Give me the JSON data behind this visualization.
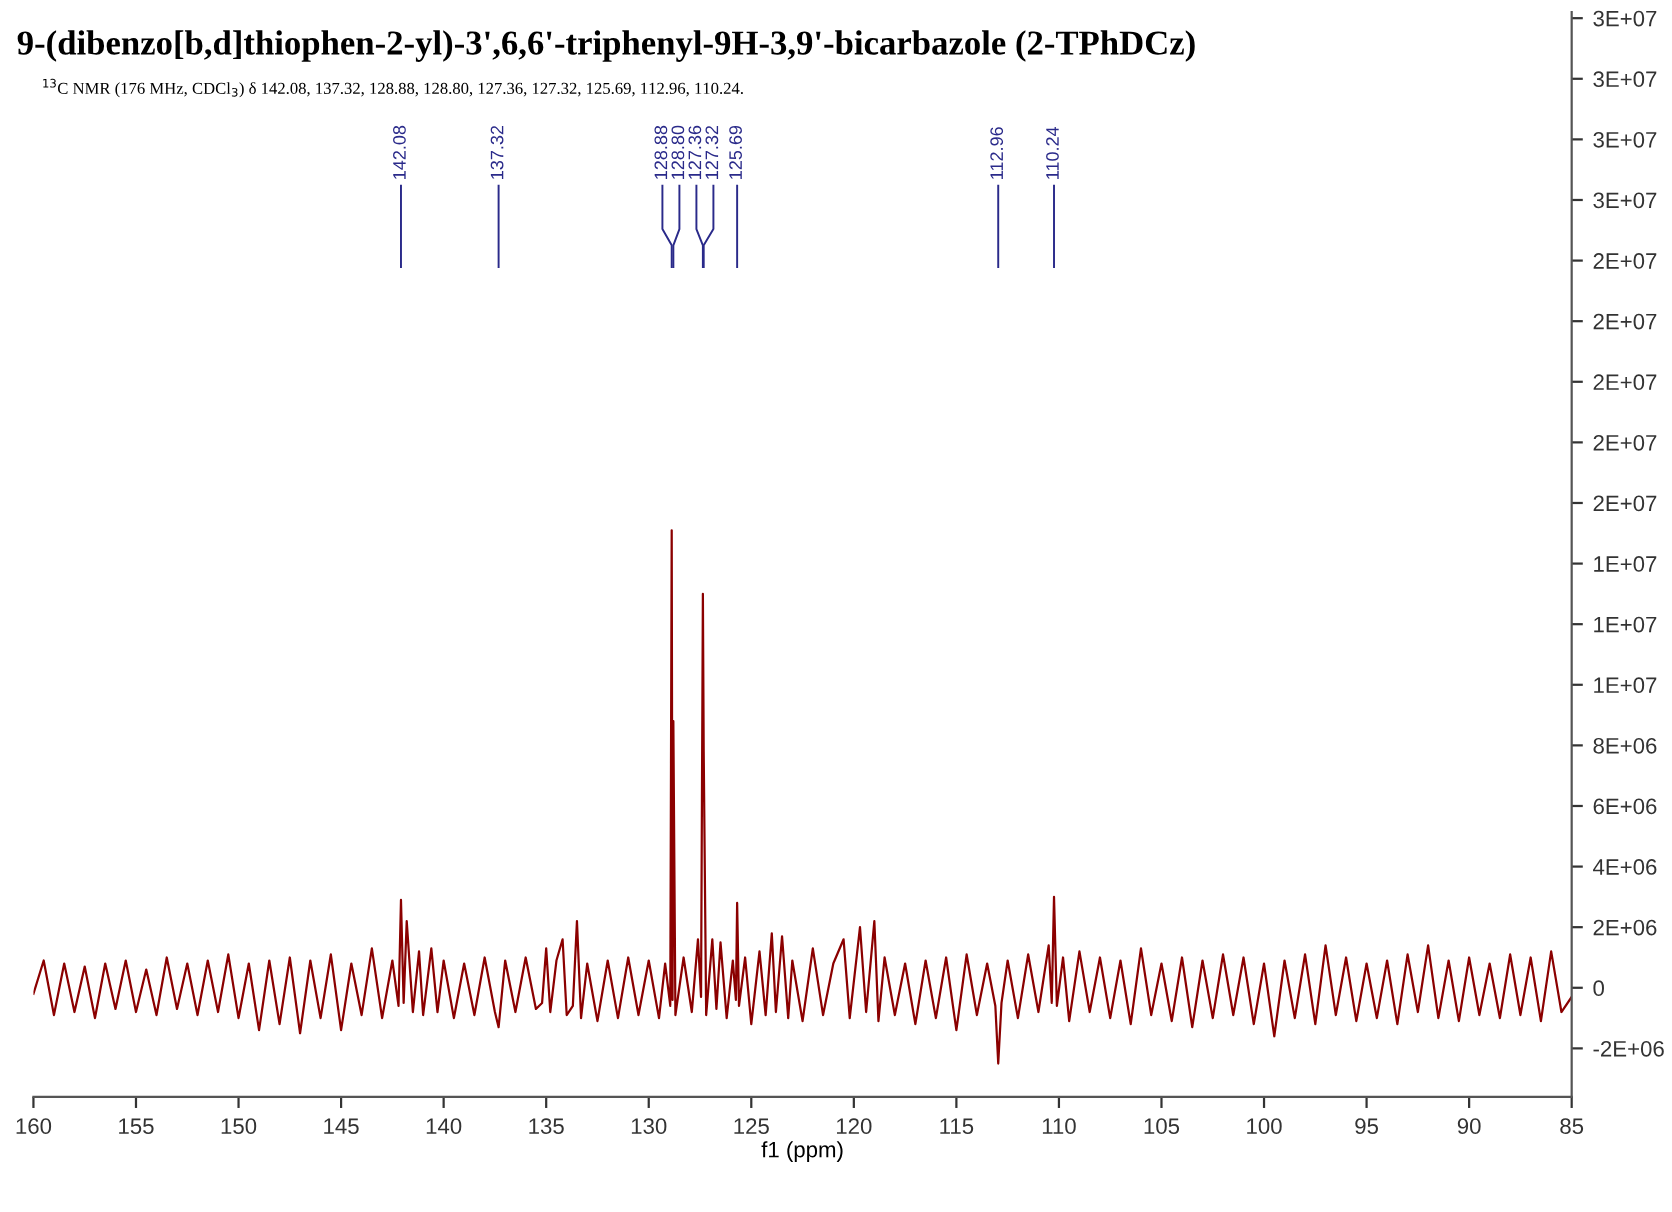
{
  "chart_data": {
    "type": "line",
    "title": "9-(dibenzo[b,d]thiophen-2-yl)-3',6,6'-triphenyl-9H-3,9'-bicarbazole (2-TPhDCz)",
    "subtitle": "$^{13}$C NMR (176 MHz, CDCl$_{3}$) δ 142.08, 137.32, 128.88, 128.80, 127.36, 127.32, 125.69, 112.96, 110.24.",
    "xlabel": "f1 (ppm)",
    "x": [
      160,
      159.5,
      159,
      158.5,
      158,
      157.5,
      157,
      156.5,
      156,
      155.5,
      155,
      154.5,
      154,
      153.5,
      153,
      152.5,
      152,
      151.5,
      151,
      150.5,
      150,
      149.5,
      149,
      148.5,
      148,
      147.5,
      147,
      146.5,
      146,
      145.5,
      145,
      144.5,
      144,
      143.5,
      143,
      142.5,
      142.2,
      142.08,
      141.95,
      141.8,
      141.5,
      141.2,
      141,
      140.6,
      140.3,
      140,
      139.5,
      139,
      138.5,
      138,
      137.5,
      137.32,
      137,
      136.5,
      136,
      135.5,
      135.2,
      135,
      134.8,
      134.5,
      134.2,
      134,
      133.7,
      133.5,
      133.3,
      133,
      132.5,
      132,
      131.5,
      131,
      130.5,
      130,
      129.5,
      129.2,
      128.95,
      128.88,
      128.84,
      128.8,
      128.7,
      128.3,
      127.9,
      127.6,
      127.45,
      127.36,
      127.32,
      127.2,
      126.9,
      126.7,
      126.5,
      126.2,
      125.9,
      125.75,
      125.69,
      125.6,
      125.3,
      125,
      124.6,
      124.3,
      124,
      123.8,
      123.5,
      123.2,
      123,
      122.5,
      122,
      121.5,
      121,
      120.5,
      120.2,
      119.7,
      119.4,
      119,
      118.8,
      118.5,
      118,
      117.5,
      117,
      116.5,
      116,
      115.5,
      115,
      114.5,
      114,
      113.5,
      113.1,
      112.96,
      112.8,
      112.5,
      112,
      111.5,
      111,
      110.5,
      110.35,
      110.24,
      110.1,
      109.8,
      109.5,
      109,
      108.5,
      108,
      107.5,
      107,
      106.5,
      106,
      105.5,
      105,
      104.5,
      104,
      103.5,
      103,
      102.5,
      102,
      101.5,
      101,
      100.5,
      100,
      99.5,
      99,
      98.5,
      98,
      97.5,
      97,
      96.5,
      96,
      95.5,
      95,
      94.5,
      94,
      93.5,
      93,
      92.5,
      92,
      91.5,
      91,
      90.5,
      90,
      89.5,
      89,
      88.5,
      88,
      87.5,
      87,
      86.5,
      86,
      85.5,
      85
    ],
    "series": [
      {
        "color": "#8b0000",
        "values": [
          -200000.0,
          900000.0,
          -900000.0,
          800000.0,
          -800000.0,
          700000.0,
          -1000000.0,
          800000.0,
          -700000.0,
          900000.0,
          -800000.0,
          600000.0,
          -900000.0,
          1000000.0,
          -700000.0,
          800000.0,
          -900000.0,
          900000.0,
          -800000.0,
          1100000.0,
          -1000000.0,
          800000.0,
          -1400000.0,
          900000.0,
          -1200000.0,
          1000000.0,
          -1500000.0,
          900000.0,
          -1000000.0,
          1100000.0,
          -1400000.0,
          800000.0,
          -900000.0,
          1300000.0,
          -1000000.0,
          900000.0,
          -600000.0,
          2900000.0,
          -500000.0,
          2200000.0,
          -800000.0,
          1200000.0,
          -900000.0,
          1300000.0,
          -800000.0,
          900000.0,
          -1000000.0,
          800000.0,
          -900000.0,
          1000000.0,
          -800000.0,
          -1300000.0,
          900000.0,
          -800000.0,
          1000000.0,
          -700000.0,
          -500000.0,
          1300000.0,
          -800000.0,
          900000.0,
          1600000.0,
          -900000.0,
          -600000.0,
          2200000.0,
          -1000000.0,
          800000.0,
          -1100000.0,
          900000.0,
          -1000000.0,
          1000000.0,
          -900000.0,
          900000.0,
          -1000000.0,
          800000.0,
          -600000.0,
          15100000.0,
          -400000.0,
          8800000.0,
          -900000.0,
          1000000.0,
          -800000.0,
          1600000.0,
          -300000.0,
          13000000.0,
          7800000.0,
          -900000.0,
          1600000.0,
          -700000.0,
          1500000.0,
          -1000000.0,
          900000.0,
          -400000.0,
          2800000.0,
          -600000.0,
          1000000.0,
          -1200000.0,
          1200000.0,
          -900000.0,
          1800000.0,
          -800000.0,
          1700000.0,
          -1000000.0,
          900000.0,
          -1100000.0,
          1300000.0,
          -900000.0,
          800000.0,
          1600000.0,
          -1000000.0,
          2000000.0,
          -800000.0,
          2200000.0,
          -1100000.0,
          1000000.0,
          -900000.0,
          800000.0,
          -1200000.0,
          900000.0,
          -1000000.0,
          1000000.0,
          -1400000.0,
          1100000.0,
          -900000.0,
          800000.0,
          -600000.0,
          -2500000.0,
          -500000.0,
          900000.0,
          -1000000.0,
          1100000.0,
          -800000.0,
          1400000.0,
          -500000.0,
          3000000.0,
          -600000.0,
          1000000.0,
          -1100000.0,
          1200000.0,
          -800000.0,
          1000000.0,
          -1000000.0,
          900000.0,
          -1200000.0,
          1300000.0,
          -900000.0,
          800000.0,
          -1100000.0,
          1000000.0,
          -1300000.0,
          900000.0,
          -1000000.0,
          1100000.0,
          -900000.0,
          1000000.0,
          -1200000.0,
          800000.0,
          -1600000.0,
          900000.0,
          -1000000.0,
          1100000.0,
          -1200000.0,
          1400000.0,
          -900000.0,
          1000000.0,
          -1100000.0,
          800000.0,
          -1000000.0,
          900000.0,
          -1200000.0,
          1100000.0,
          -800000.0,
          1400000.0,
          -1000000.0,
          900000.0,
          -1100000.0,
          1000000.0,
          -900000.0,
          800000.0,
          -1000000.0,
          1100000.0,
          -900000.0,
          1000000.0,
          -1100000.0,
          1200000.0,
          -800000.0,
          -300000.0
        ]
      }
    ],
    "xlim": [
      160,
      85
    ],
    "xticks": [
      160,
      155,
      150,
      145,
      140,
      135,
      130,
      125,
      120,
      115,
      110,
      105,
      100,
      95,
      90,
      85
    ],
    "ylim": [
      -3600000.0,
      32200000.0
    ],
    "yticks": [
      {
        "value": -2000000.0,
        "label": "-2E+06"
      },
      0,
      {
        "value": 2000000.0,
        "label": "2E+06"
      },
      {
        "value": 4000000.0,
        "label": "4E+06"
      },
      {
        "value": 6000000.0,
        "label": "6E+06"
      },
      {
        "value": 8000000.0,
        "label": "8E+06"
      },
      {
        "value": 10000000.0,
        "label": "1E+07"
      },
      {
        "value": 12000000.0,
        "label": "1E+07"
      },
      {
        "value": 14000000.0,
        "label": "1E+07"
      },
      {
        "value": 16000000.0,
        "label": "2E+07"
      },
      {
        "value": 18000000.0,
        "label": "2E+07"
      },
      {
        "value": 20000000.0,
        "label": "2E+07"
      },
      {
        "value": 22000000.0,
        "label": "2E+07"
      },
      {
        "value": 24000000.0,
        "label": "2E+07"
      },
      {
        "value": 26000000.0,
        "label": "3E+07"
      },
      {
        "value": 28000000.0,
        "label": "3E+07"
      },
      {
        "value": 30000000.0,
        "label": "3E+07"
      },
      {
        "value": 32000000.0,
        "label": "3E+07"
      }
    ],
    "annotations": [
      {
        "text": "142.08",
        "x": 142.08
      },
      {
        "text": "137.32",
        "x": 137.32
      },
      {
        "text": "128.88",
        "x": 128.88
      },
      {
        "text": "128.80",
        "x": 128.8
      },
      {
        "text": "127.36",
        "x": 127.36
      },
      {
        "text": "127.32",
        "x": 127.32
      },
      {
        "text": "125.69",
        "x": 125.69
      },
      {
        "text": "112.96",
        "x": 112.96
      },
      {
        "text": "110.24",
        "x": 110.24
      }
    ]
  }
}
